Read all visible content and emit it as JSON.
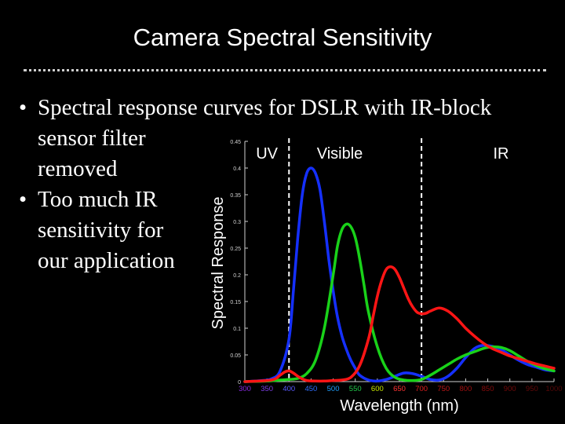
{
  "slide": {
    "title": "Camera Spectral Sensitivity",
    "bullets": [
      {
        "line1": "Spectral response curves for DSLR with IR-block",
        "rest": "sensor filter removed"
      },
      {
        "text": "Too much IR sensitivity for our application"
      }
    ],
    "bullet_glyph": "•"
  },
  "chart_data": {
    "type": "line",
    "xlabel": "Wavelength (nm)",
    "ylabel": "Spectral Response",
    "xlim": [
      300,
      1000
    ],
    "ylim": [
      0,
      0.45
    ],
    "x_ticks": [
      300,
      350,
      400,
      450,
      500,
      550,
      600,
      650,
      700,
      750,
      800,
      850,
      900,
      950,
      1000
    ],
    "x_tick_labels": [
      "300",
      "350",
      "400",
      "450",
      "500",
      "550",
      "600",
      "650",
      "700",
      "750",
      "800",
      "850",
      "900",
      "950",
      "1000"
    ],
    "x_tick_colors": [
      "#8a2be2",
      "#7b3fe4",
      "#5a5aff",
      "#2f6fff",
      "#1fa0ff",
      "#22c84a",
      "#c8e600",
      "#ff3333",
      "#e02020",
      "#c01818",
      "#a01010",
      "#8a0c0c",
      "#760a0a",
      "#650909",
      "#560808"
    ],
    "y_ticks": [
      0,
      0.05,
      0.1,
      0.15,
      0.2,
      0.25,
      0.3,
      0.35,
      0.4,
      0.45
    ],
    "y_tick_labels": [
      "0",
      "0.05",
      "0.1",
      "0.15",
      "0.2",
      "0.25",
      "0.3",
      "0.35",
      "0.4",
      "0.45"
    ],
    "region_dividers": [
      400,
      700
    ],
    "regions": [
      {
        "label": "UV",
        "x": 350
      },
      {
        "label": "Visible",
        "x": 515
      },
      {
        "label": "IR",
        "x": 880
      }
    ],
    "series": [
      {
        "color": "#1530ff",
        "x": [
          300,
          340,
          360,
          380,
          400,
          410,
          420,
          430,
          440,
          450,
          460,
          470,
          480,
          490,
          500,
          510,
          520,
          530,
          540,
          550,
          560,
          580,
          600,
          620,
          640,
          660,
          680,
          700,
          720,
          740,
          760,
          780,
          800,
          820,
          840,
          860,
          880,
          900,
          920,
          940,
          960,
          980,
          1000
        ],
        "y": [
          0,
          0.002,
          0.005,
          0.02,
          0.08,
          0.17,
          0.27,
          0.35,
          0.39,
          0.4,
          0.39,
          0.36,
          0.3,
          0.23,
          0.17,
          0.12,
          0.085,
          0.06,
          0.04,
          0.025,
          0.012,
          0.003,
          0.001,
          0.004,
          0.01,
          0.016,
          0.015,
          0.01,
          0.004,
          0.003,
          0.01,
          0.025,
          0.045,
          0.062,
          0.068,
          0.066,
          0.06,
          0.05,
          0.04,
          0.032,
          0.027,
          0.022,
          0.02
        ]
      },
      {
        "color": "#19d219",
        "x": [
          300,
          350,
          380,
          400,
          420,
          440,
          460,
          480,
          500,
          510,
          520,
          530,
          540,
          550,
          560,
          570,
          580,
          600,
          620,
          640,
          660,
          680,
          700,
          720,
          740,
          760,
          780,
          800,
          820,
          840,
          860,
          880,
          900,
          920,
          940,
          960,
          980,
          1000
        ],
        "y": [
          0,
          0.001,
          0.003,
          0.004,
          0.006,
          0.015,
          0.04,
          0.1,
          0.2,
          0.255,
          0.285,
          0.295,
          0.29,
          0.27,
          0.23,
          0.18,
          0.13,
          0.065,
          0.025,
          0.008,
          0.003,
          0.002,
          0.004,
          0.012,
          0.022,
          0.032,
          0.042,
          0.05,
          0.056,
          0.062,
          0.065,
          0.064,
          0.058,
          0.048,
          0.038,
          0.03,
          0.024,
          0.02
        ]
      },
      {
        "color": "#ff1515",
        "x": [
          300,
          360,
          380,
          390,
          400,
          410,
          420,
          430,
          440,
          460,
          480,
          500,
          520,
          540,
          560,
          580,
          590,
          600,
          610,
          620,
          630,
          640,
          650,
          660,
          670,
          680,
          690,
          700,
          710,
          720,
          740,
          760,
          780,
          800,
          820,
          840,
          860,
          880,
          900,
          920,
          940,
          960,
          980,
          1000
        ],
        "y": [
          0,
          0.003,
          0.012,
          0.018,
          0.02,
          0.016,
          0.01,
          0.005,
          0.002,
          0.001,
          0.001,
          0.002,
          0.003,
          0.008,
          0.03,
          0.08,
          0.12,
          0.16,
          0.19,
          0.21,
          0.215,
          0.21,
          0.195,
          0.175,
          0.155,
          0.14,
          0.13,
          0.127,
          0.128,
          0.132,
          0.138,
          0.132,
          0.118,
          0.1,
          0.085,
          0.072,
          0.062,
          0.055,
          0.048,
          0.043,
          0.038,
          0.033,
          0.029,
          0.025
        ]
      }
    ]
  }
}
